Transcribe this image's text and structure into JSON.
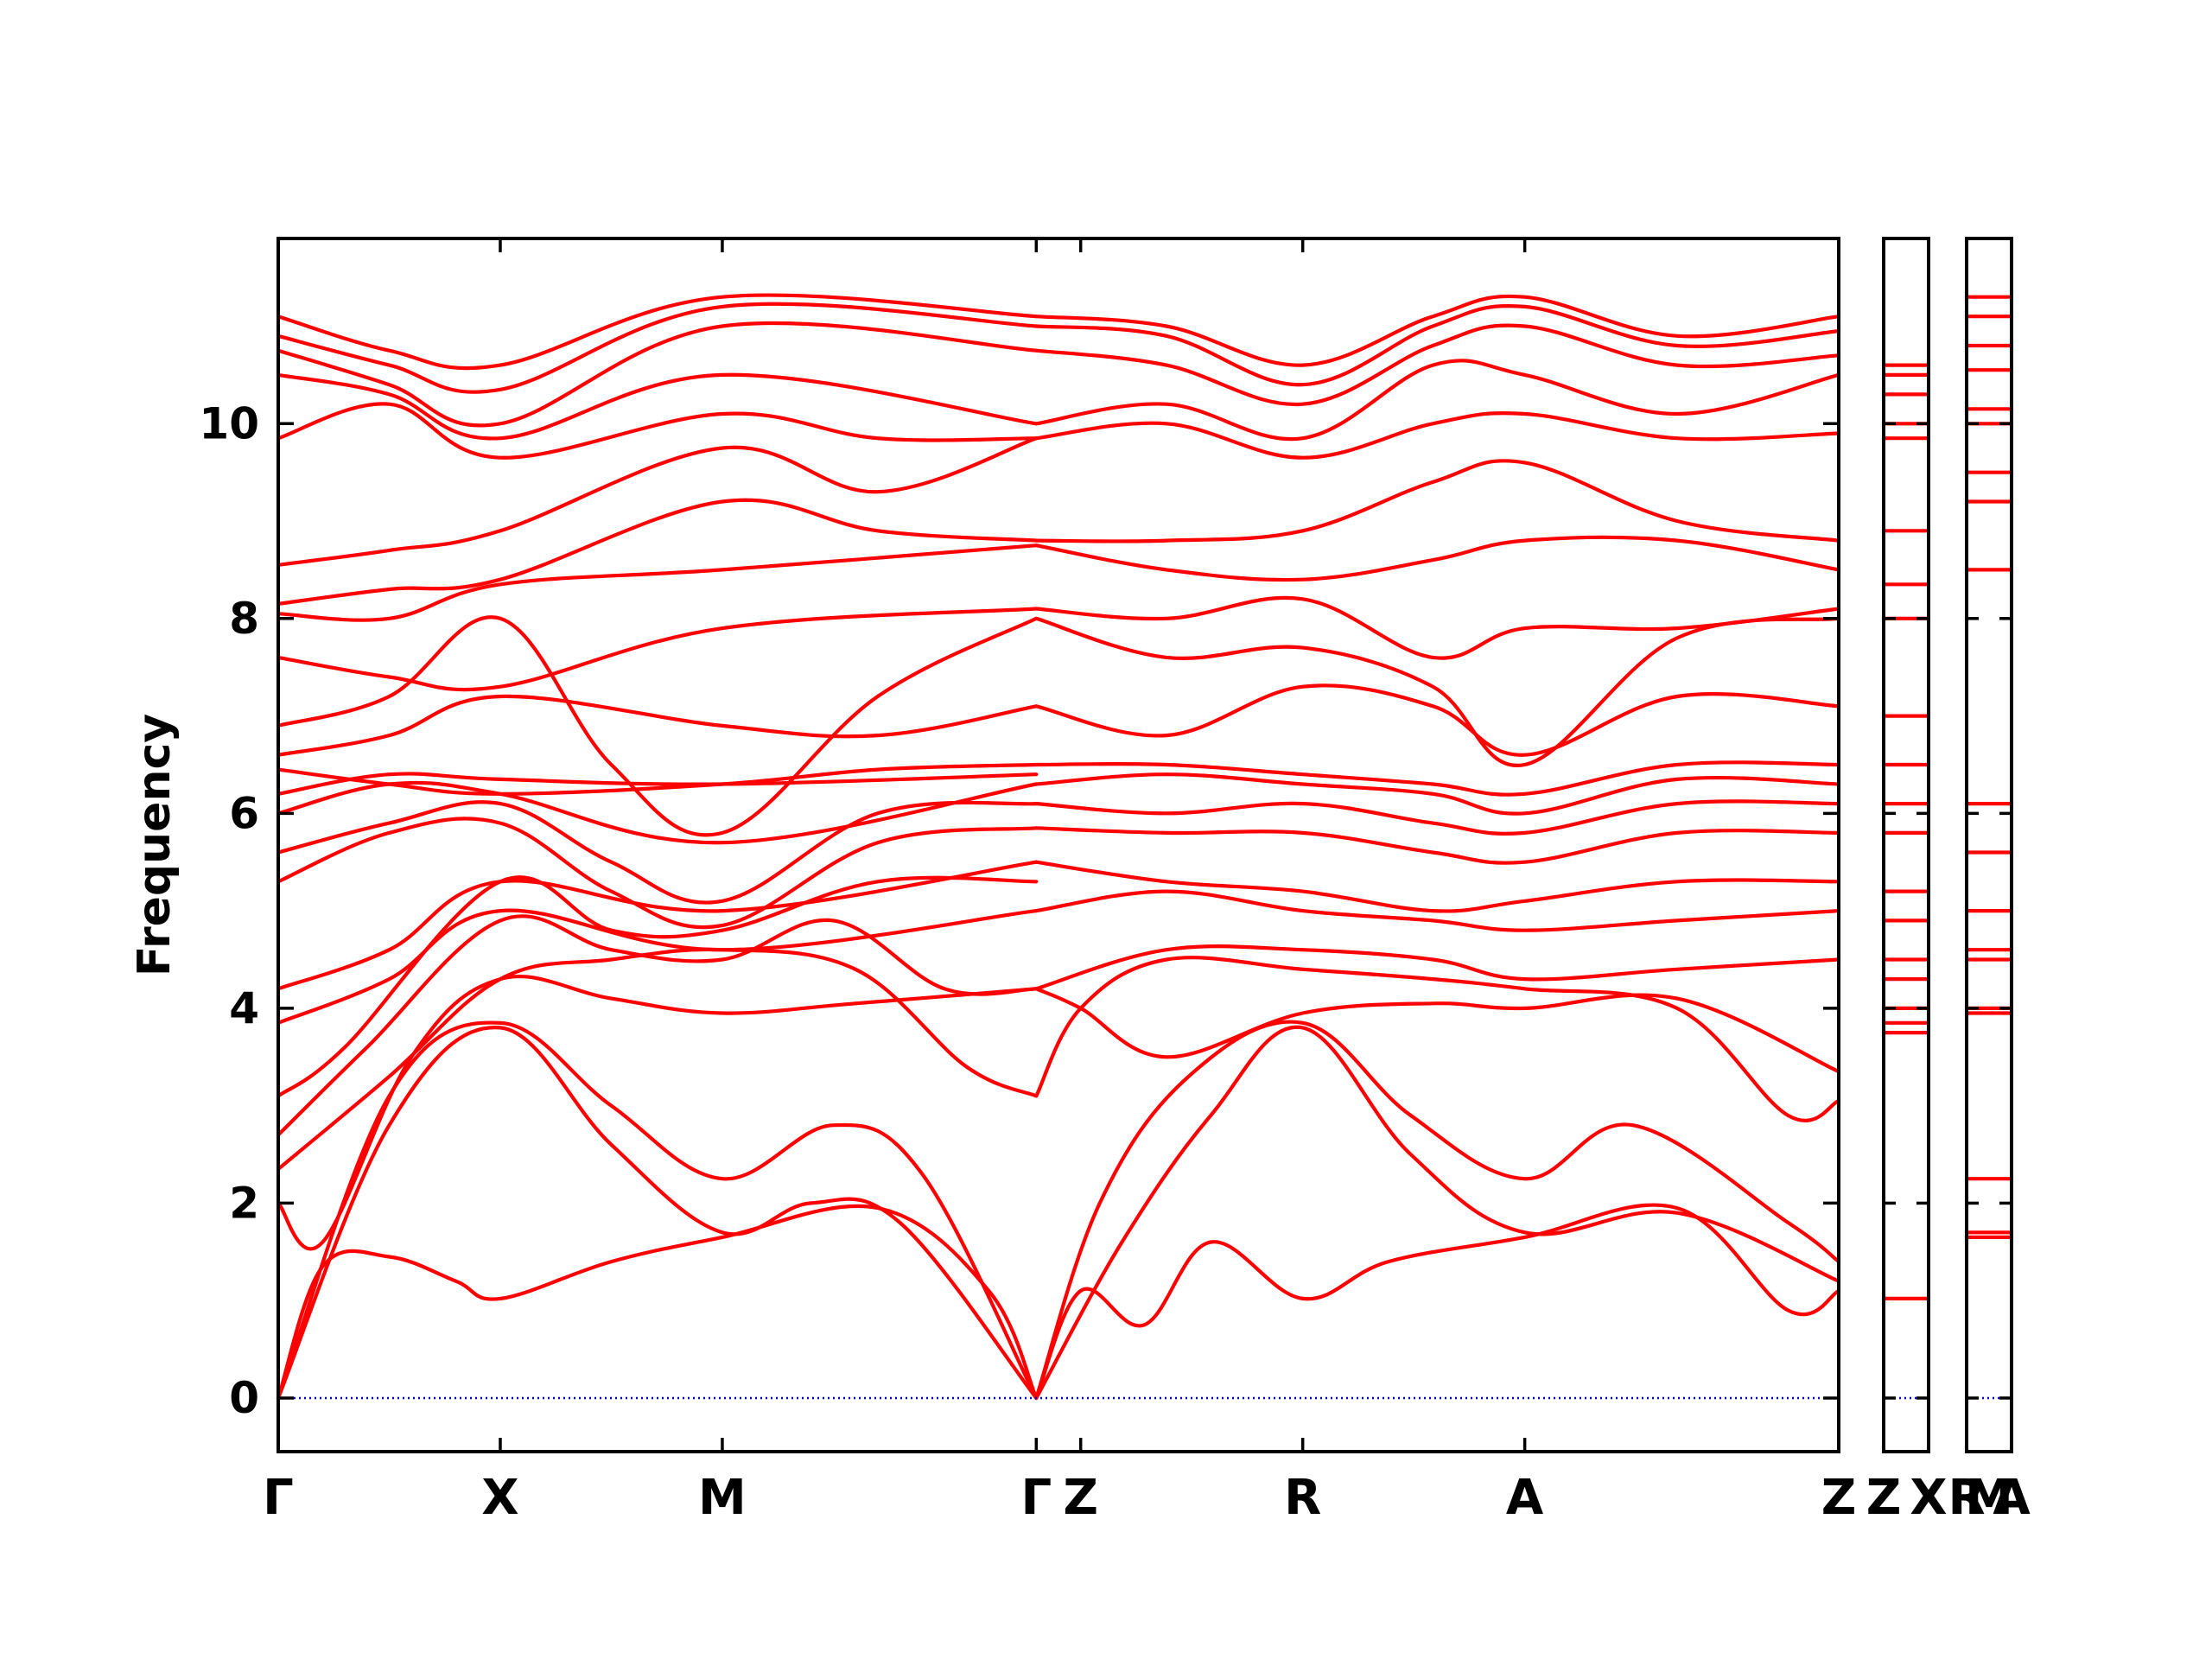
{
  "chart_data": {
    "type": "line",
    "title": "",
    "xlabel": "",
    "ylabel": "Frequency",
    "ylim": [
      -0.55,
      11.9
    ],
    "yticks": [
      0,
      2,
      4,
      6,
      8,
      10
    ],
    "ytick_labels": [
      "0",
      "2",
      "4",
      "6",
      "8",
      "10"
    ],
    "grid": false,
    "legend": "none",
    "colors": {
      "bands": "#ff0000",
      "zero_line": "#0000cc",
      "frame": "#000000"
    },
    "panels": [
      {
        "name": "main",
        "kpoints": [
          "Γ",
          "X",
          "M",
          "Γ",
          "Z",
          "R",
          "A",
          "Z"
        ],
        "kpoint_positions": [
          0,
          1,
          2,
          3.414,
          3.614,
          4.614,
          5.614,
          7.028
        ],
        "bands": [
          {
            "x": [
              0,
              0.2,
              0.5,
              0.8,
              1,
              1.5,
              2,
              2.7,
              3.2,
              3.414
            ],
            "y": [
              0,
              1.35,
              1.45,
              1.2,
              1.02,
              1.4,
              1.65,
              1.95,
              1.1,
              0
            ]
          },
          {
            "x": [
              0,
              0.5,
              1,
              1.5,
              2,
              2.4,
              2.8,
              3.414
            ],
            "y": [
              0,
              2.8,
              3.8,
              2.6,
              1.7,
              2.0,
              1.8,
              0
            ]
          },
          {
            "x": [
              0,
              0.5,
              1,
              1.5,
              2,
              2.5,
              2.9,
              3.414
            ],
            "y": [
              0,
              3.1,
              3.85,
              3.0,
              2.25,
              2.8,
              2.3,
              0
            ]
          },
          {
            "x": [
              0,
              0.2,
              0.6,
              1,
              1.5,
              2,
              2.6,
              3.414
            ],
            "y": [
              2.0,
              1.6,
              3.5,
              4.3,
              4.1,
              3.95,
              4.05,
              4.2
            ]
          },
          {
            "x": [
              0,
              0.5,
              1,
              1.5,
              2,
              2.6,
              3.1,
              3.414
            ],
            "y": [
              2.35,
              3.3,
              4.3,
              4.5,
              4.6,
              4.4,
              3.4,
              3.1
            ]
          },
          {
            "x": [
              0,
              0.4,
              1,
              1.5,
              2,
              2.5,
              3.0,
              3.414
            ],
            "y": [
              2.7,
              3.6,
              4.9,
              4.6,
              4.5,
              4.9,
              4.2,
              4.2
            ]
          },
          {
            "x": [
              0,
              0.3,
              1,
              1.5,
              2,
              2.7,
              3.414
            ],
            "y": [
              3.1,
              3.6,
              5.3,
              4.8,
              4.8,
              5.3,
              5.3
            ]
          },
          {
            "x": [
              0,
              0.5,
              1,
              2,
              3.414
            ],
            "y": [
              3.85,
              4.3,
              5.0,
              4.6,
              5.0
            ]
          },
          {
            "x": [
              0,
              0.5,
              1,
              2,
              3.414
            ],
            "y": [
              4.2,
              4.6,
              5.3,
              5.0,
              5.5
            ]
          },
          {
            "x": [
              0,
              0.5,
              1,
              1.5,
              2,
              2.7,
              3.414
            ],
            "y": [
              5.3,
              5.8,
              5.9,
              5.2,
              4.85,
              5.7,
              5.85
            ]
          },
          {
            "x": [
              0,
              0.5,
              1,
              1.5,
              2,
              2.7,
              3.414
            ],
            "y": [
              5.6,
              5.9,
              6.1,
              5.5,
              5.1,
              6.0,
              6.1
            ]
          },
          {
            "x": [
              0,
              0.5,
              1,
              2,
              3.414
            ],
            "y": [
              6.0,
              6.3,
              6.2,
              5.7,
              6.3
            ]
          },
          {
            "x": [
              0,
              0.5,
              1,
              2,
              3.414
            ],
            "y": [
              6.2,
              6.4,
              6.35,
              6.3,
              6.4
            ]
          },
          {
            "x": [
              0,
              0.5,
              1,
              2,
              2.7,
              3.414
            ],
            "y": [
              6.45,
              6.3,
              6.2,
              6.3,
              6.45,
              6.5
            ]
          },
          {
            "x": [
              0,
              0.5,
              1,
              2,
              2.7,
              3.414
            ],
            "y": [
              6.6,
              6.8,
              7.2,
              6.9,
              6.8,
              7.1
            ]
          },
          {
            "x": [
              0,
              0.5,
              1,
              1.5,
              2,
              2.7,
              3.414
            ],
            "y": [
              6.9,
              7.2,
              8.0,
              6.5,
              5.8,
              7.2,
              8.0
            ]
          },
          {
            "x": [
              0,
              0.5,
              1,
              2,
              3.414
            ],
            "y": [
              7.6,
              7.4,
              7.3,
              7.9,
              8.1
            ]
          },
          {
            "x": [
              0,
              0.5,
              1,
              2,
              3.414
            ],
            "y": [
              8.05,
              8.0,
              8.35,
              8.5,
              8.75
            ]
          },
          {
            "x": [
              0,
              0.5,
              1,
              2,
              2.7,
              3.414
            ],
            "y": [
              8.15,
              8.3,
              8.4,
              9.2,
              8.9,
              8.8
            ]
          },
          {
            "x": [
              0,
              0.5,
              1,
              2,
              2.7,
              3.414
            ],
            "y": [
              8.55,
              8.7,
              8.9,
              9.75,
              9.3,
              9.85
            ]
          },
          {
            "x": [
              0,
              0.5,
              1,
              2,
              2.7,
              3.414
            ],
            "y": [
              9.85,
              10.2,
              9.65,
              10.1,
              9.85,
              9.85
            ]
          },
          {
            "x": [
              0,
              0.5,
              1,
              2,
              3.414
            ],
            "y": [
              10.5,
              10.3,
              9.85,
              10.5,
              10.0
            ]
          },
          {
            "x": [
              0,
              0.5,
              1,
              2,
              3.414
            ],
            "y": [
              10.75,
              10.4,
              10.0,
              11.0,
              10.75
            ]
          },
          {
            "x": [
              0,
              0.5,
              1,
              2,
              3.414
            ],
            "y": [
              10.9,
              10.6,
              10.35,
              11.2,
              11.0
            ]
          },
          {
            "x": [
              0,
              0.5,
              1,
              2,
              3.414
            ],
            "y": [
              11.1,
              10.75,
              10.6,
              11.3,
              11.1
            ]
          },
          {
            "x": [
              3.414,
              3.614,
              3.9,
              4.2,
              4.614,
              5.0,
              5.614,
              6.3,
              6.8,
              7.028
            ],
            "y": [
              0,
              1.1,
              0.75,
              1.6,
              1.02,
              1.4,
              1.65,
              1.95,
              0.9,
              1.1
            ]
          },
          {
            "x": [
              3.414,
              3.8,
              4.2,
              4.614,
              5.1,
              5.614,
              6.3,
              7.028
            ],
            "y": [
              0,
              1.6,
              2.9,
              3.8,
              2.5,
              1.7,
              1.9,
              1.2
            ]
          },
          {
            "x": [
              3.414,
              3.7,
              4.1,
              4.614,
              5.1,
              5.614,
              6.1,
              6.8,
              7.028
            ],
            "y": [
              0,
              2.0,
              3.3,
              3.85,
              2.9,
              2.25,
              2.8,
              1.8,
              1.4
            ]
          },
          {
            "x": [
              3.414,
              3.614,
              4.0,
              4.614,
              5.2,
              5.614,
              6.3,
              7.028
            ],
            "y": [
              4.2,
              4.0,
              3.5,
              3.95,
              4.05,
              4.0,
              4.1,
              3.35
            ]
          },
          {
            "x": [
              3.414,
              3.614,
              4.0,
              4.614,
              5.2,
              5.614,
              6.3,
              6.8,
              7.028
            ],
            "y": [
              3.1,
              4.0,
              4.5,
              4.4,
              4.3,
              4.2,
              4.0,
              2.9,
              3.05
            ]
          },
          {
            "x": [
              3.414,
              4.0,
              4.614,
              5.2,
              5.614,
              6.3,
              7.028
            ],
            "y": [
              4.2,
              4.6,
              4.6,
              4.5,
              4.3,
              4.4,
              4.5
            ]
          },
          {
            "x": [
              3.414,
              4.0,
              4.614,
              5.2,
              5.614,
              6.3,
              7.028
            ],
            "y": [
              5.0,
              5.2,
              5.0,
              4.9,
              4.8,
              4.9,
              5.0
            ]
          },
          {
            "x": [
              3.414,
              4.0,
              4.614,
              5.2,
              5.614,
              6.3,
              7.028
            ],
            "y": [
              5.5,
              5.3,
              5.2,
              5.0,
              5.1,
              5.3,
              5.3
            ]
          },
          {
            "x": [
              3.414,
              4.0,
              4.614,
              5.2,
              5.614,
              6.3,
              7.028
            ],
            "y": [
              5.85,
              5.8,
              5.8,
              5.6,
              5.5,
              5.8,
              5.8
            ]
          },
          {
            "x": [
              3.414,
              4.0,
              4.614,
              5.2,
              5.614,
              6.3,
              7.028
            ],
            "y": [
              6.1,
              6.0,
              6.1,
              5.9,
              5.8,
              6.1,
              6.1
            ]
          },
          {
            "x": [
              3.414,
              4.0,
              4.614,
              5.2,
              5.614,
              6.3,
              7.028
            ],
            "y": [
              6.3,
              6.4,
              6.3,
              6.2,
              6.0,
              6.35,
              6.3
            ]
          },
          {
            "x": [
              3.414,
              4.0,
              4.614,
              5.2,
              5.614,
              6.3,
              7.028
            ],
            "y": [
              6.5,
              6.5,
              6.4,
              6.3,
              6.2,
              6.5,
              6.5
            ]
          },
          {
            "x": [
              3.414,
              4.0,
              4.614,
              5.2,
              5.614,
              6.3,
              7.028
            ],
            "y": [
              7.1,
              6.8,
              7.3,
              7.1,
              6.6,
              7.2,
              7.1
            ]
          },
          {
            "x": [
              3.414,
              4.0,
              4.614,
              5.2,
              5.614,
              6.3,
              7.028
            ],
            "y": [
              8.0,
              7.6,
              7.7,
              7.3,
              6.5,
              7.8,
              8.0
            ]
          },
          {
            "x": [
              3.414,
              4.0,
              4.614,
              5.2,
              5.614,
              6.3,
              7.028
            ],
            "y": [
              8.1,
              8.0,
              8.2,
              7.6,
              7.9,
              7.9,
              8.1
            ]
          },
          {
            "x": [
              3.414,
              4.0,
              4.614,
              5.2,
              5.614,
              6.3,
              7.028
            ],
            "y": [
              8.75,
              8.5,
              8.4,
              8.6,
              8.8,
              8.8,
              8.5
            ]
          },
          {
            "x": [
              3.414,
              4.0,
              4.614,
              5.2,
              5.614,
              6.3,
              7.028
            ],
            "y": [
              8.8,
              8.8,
              8.9,
              9.4,
              9.6,
              9.0,
              8.8
            ]
          },
          {
            "x": [
              3.414,
              4.0,
              4.614,
              5.2,
              5.614,
              6.3,
              7.028
            ],
            "y": [
              9.85,
              10.0,
              9.65,
              10.0,
              10.1,
              9.85,
              9.9
            ]
          },
          {
            "x": [
              3.414,
              4.0,
              4.614,
              5.2,
              5.614,
              6.3,
              7.028
            ],
            "y": [
              10.0,
              10.2,
              9.85,
              10.6,
              10.5,
              10.1,
              10.5
            ]
          },
          {
            "x": [
              3.414,
              4.0,
              4.614,
              5.2,
              5.614,
              6.3,
              7.028
            ],
            "y": [
              10.75,
              10.6,
              10.2,
              10.8,
              11.0,
              10.6,
              10.7
            ]
          },
          {
            "x": [
              3.414,
              4.0,
              4.614,
              5.2,
              5.614,
              6.3,
              7.028
            ],
            "y": [
              11.0,
              10.9,
              10.4,
              11.0,
              11.2,
              10.8,
              10.95
            ]
          },
          {
            "x": [
              3.414,
              4.0,
              4.614,
              5.2,
              5.614,
              6.3,
              7.028
            ],
            "y": [
              11.1,
              11.0,
              10.6,
              11.1,
              11.3,
              10.9,
              11.1
            ]
          }
        ]
      },
      {
        "name": "ZX",
        "kpoints": [
          "Z",
          "X"
        ],
        "bands_flat": [
          1.02,
          3.75,
          3.85,
          4.0,
          4.3,
          4.5,
          4.9,
          5.2,
          5.8,
          6.1,
          6.5,
          7.0,
          8.0,
          8.35,
          8.9,
          9.85,
          10.0,
          10.3,
          10.5,
          10.6
        ]
      },
      {
        "name": "RA",
        "kpoints": [
          "R",
          "M",
          "A"
        ],
        "bands_flat": [
          1.65,
          1.7,
          2.25,
          3.95,
          4.0,
          4.5,
          4.6,
          5.0,
          5.6,
          6.1,
          8.5,
          9.2,
          9.5,
          10.0,
          10.15,
          10.55,
          10.8,
          11.1,
          11.3
        ]
      }
    ]
  }
}
